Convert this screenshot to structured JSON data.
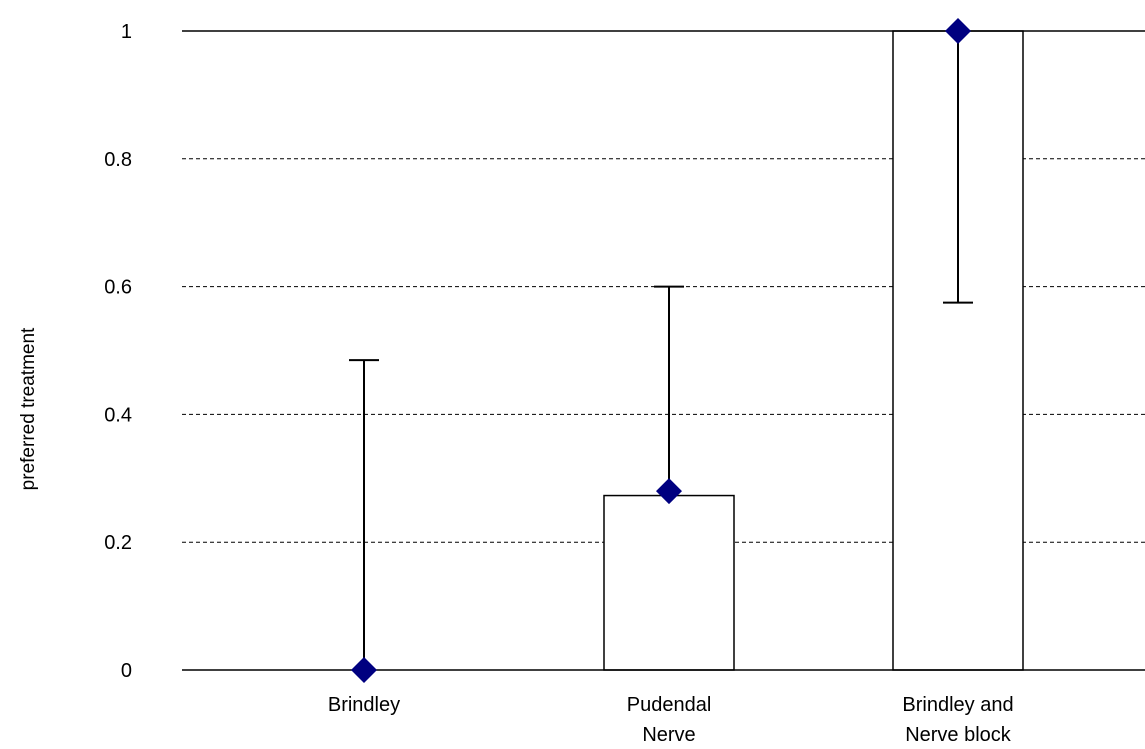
{
  "chart_data": {
    "type": "bar",
    "categories": [
      [
        "Brindley"
      ],
      [
        "Pudendal",
        "Nerve"
      ],
      [
        "Brindley and",
        "Nerve block"
      ]
    ],
    "series": [
      {
        "bar_values": [
          0,
          0.273,
          1.0
        ],
        "point_values": [
          0,
          0.28,
          1.0
        ],
        "error_upper": [
          0.485,
          0.6,
          1.0
        ],
        "error_lower": [
          0,
          0.28,
          0.575
        ]
      }
    ],
    "title": "",
    "xlabel": "",
    "ylabel": "preferred treatment",
    "ylim": [
      0,
      1
    ],
    "yticks": [
      "0",
      "0.2",
      "0.4",
      "0.6",
      "0.8",
      "1"
    ],
    "grid": "horizontal dashed",
    "legend": "none",
    "colors": {
      "marker": "#000080",
      "bar_fill": "#ffffff",
      "bar_stroke": "#000000",
      "grid": "#000000",
      "error_bar": "#000000"
    }
  }
}
